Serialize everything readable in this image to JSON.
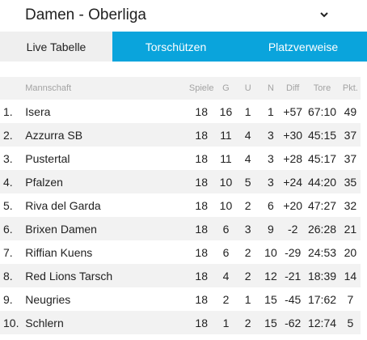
{
  "header": {
    "title": "Damen - Oberliga",
    "dropdown_icon": "chevron-down-icon"
  },
  "tabs": [
    {
      "label": "Live Tabelle",
      "active": true
    },
    {
      "label": "Torschützen",
      "active": false
    },
    {
      "label": "Platzverweise",
      "active": false
    }
  ],
  "colors": {
    "tab_accent": "#0aa4dc",
    "row_stripe": "#f2f2f2"
  },
  "table": {
    "columns": [
      "Mannschaft",
      "Spiele",
      "G",
      "U",
      "N",
      "Diff",
      "Tore",
      "Pkt."
    ],
    "rows": [
      {
        "rank": "1.",
        "team": "Isera",
        "spiele": "18",
        "g": "16",
        "u": "1",
        "n": "1",
        "diff": "+57",
        "tore": "67:10",
        "pkt": "49"
      },
      {
        "rank": "2.",
        "team": "Azzurra SB",
        "spiele": "18",
        "g": "11",
        "u": "4",
        "n": "3",
        "diff": "+30",
        "tore": "45:15",
        "pkt": "37"
      },
      {
        "rank": "3.",
        "team": "Pustertal",
        "spiele": "18",
        "g": "11",
        "u": "4",
        "n": "3",
        "diff": "+28",
        "tore": "45:17",
        "pkt": "37"
      },
      {
        "rank": "4.",
        "team": "Pfalzen",
        "spiele": "18",
        "g": "10",
        "u": "5",
        "n": "3",
        "diff": "+24",
        "tore": "44:20",
        "pkt": "35"
      },
      {
        "rank": "5.",
        "team": "Riva del Garda",
        "spiele": "18",
        "g": "10",
        "u": "2",
        "n": "6",
        "diff": "+20",
        "tore": "47:27",
        "pkt": "32"
      },
      {
        "rank": "6.",
        "team": "Brixen Damen",
        "spiele": "18",
        "g": "6",
        "u": "3",
        "n": "9",
        "diff": "-2",
        "tore": "26:28",
        "pkt": "21"
      },
      {
        "rank": "7.",
        "team": "Riffian Kuens",
        "spiele": "18",
        "g": "6",
        "u": "2",
        "n": "10",
        "diff": "-29",
        "tore": "24:53",
        "pkt": "20"
      },
      {
        "rank": "8.",
        "team": "Red Lions Tarsch",
        "spiele": "18",
        "g": "4",
        "u": "2",
        "n": "12",
        "diff": "-21",
        "tore": "18:39",
        "pkt": "14"
      },
      {
        "rank": "9.",
        "team": "Neugries",
        "spiele": "18",
        "g": "2",
        "u": "1",
        "n": "15",
        "diff": "-45",
        "tore": "17:62",
        "pkt": "7"
      },
      {
        "rank": "10.",
        "team": "Schlern",
        "spiele": "18",
        "g": "1",
        "u": "2",
        "n": "15",
        "diff": "-62",
        "tore": "12:74",
        "pkt": "5"
      }
    ]
  }
}
